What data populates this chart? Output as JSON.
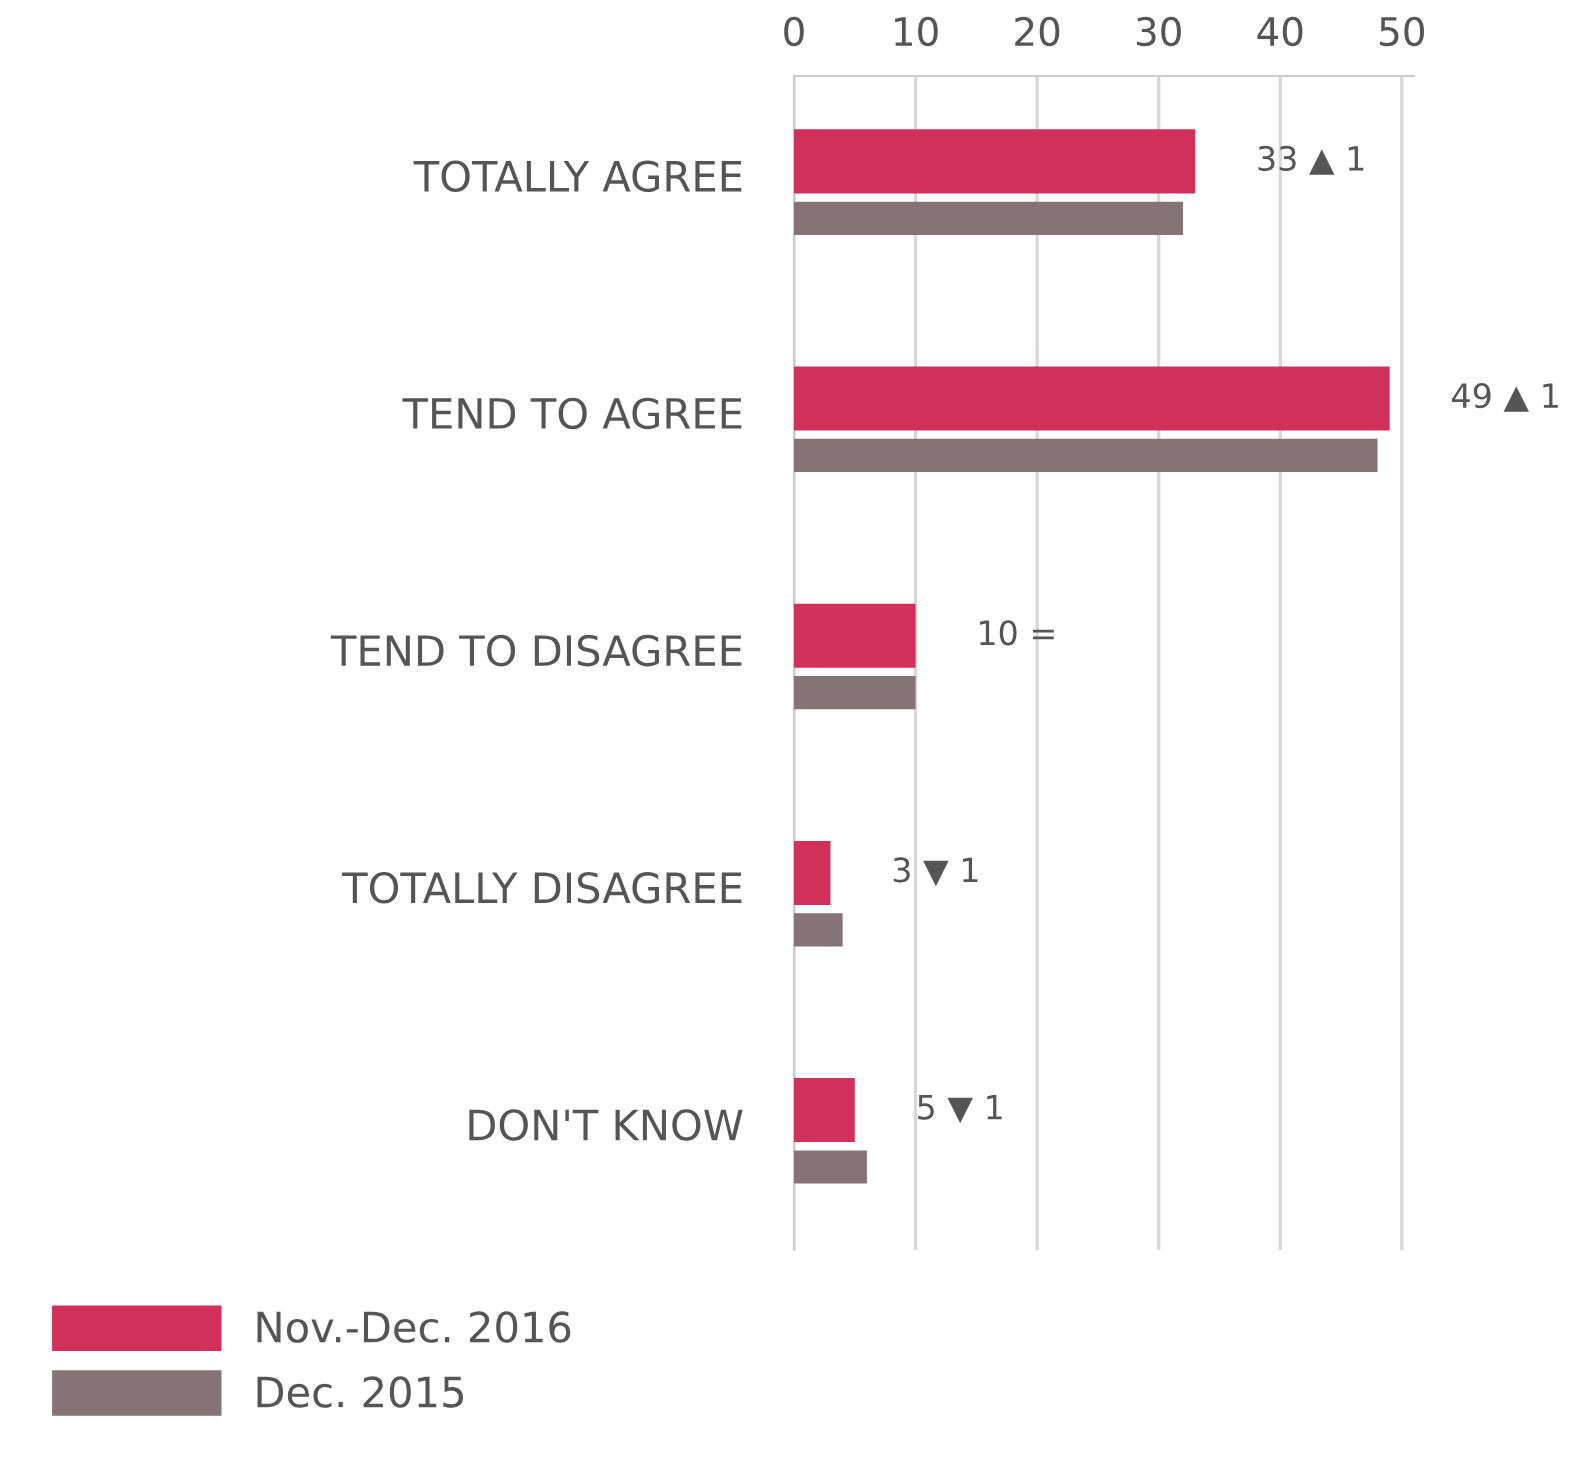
{
  "chart_data": {
    "type": "bar",
    "orientation": "horizontal",
    "categories": [
      "TOTALLY AGREE",
      "TEND TO AGREE",
      "TEND TO DISAGREE",
      "TOTALLY DISAGREE",
      "DON'T KNOW"
    ],
    "series": [
      {
        "name": "Nov.-Dec. 2016",
        "color": "#d0305a",
        "values": [
          33,
          49,
          10,
          3,
          5
        ],
        "value_labels": [
          "33 ▲ 1",
          "49 ▲ 1",
          "10 =",
          "3 ▼ 1",
          "5 ▼ 1"
        ]
      },
      {
        "name": "Dec. 2015",
        "color": "#857377",
        "values": [
          32,
          48,
          10,
          4,
          6
        ]
      }
    ],
    "xlim": [
      0,
      51
    ],
    "xticks": [
      0,
      10,
      20,
      30,
      40,
      50
    ],
    "grid": "x",
    "legend": "bottom left"
  }
}
